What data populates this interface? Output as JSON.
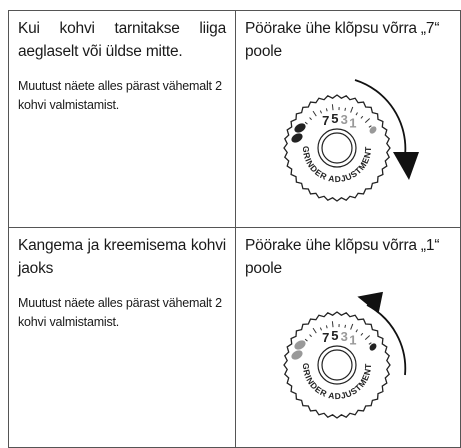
{
  "dial_label": "GRINDER ADJUSTMENT",
  "dial_numbers": [
    "7",
    "5",
    "3",
    "1"
  ],
  "table": {
    "rows": [
      {
        "problem": "Kui kohvi tarnitakse liiga aeglaselt või üldse mitte.",
        "note": "Muutust näete alles pärast vähemalt 2 kohvi valmistamist.",
        "action": "Pöörake ühe klõpsu võrra „7“ poole"
      },
      {
        "problem": "Kangema ja kreemisema kohvi jaoks",
        "note": "Muutust näete alles pärast vähemalt 2 kohvi valmistamist.",
        "action": "Pöörake ühe klõpsu võrra „1“ poole"
      }
    ]
  }
}
